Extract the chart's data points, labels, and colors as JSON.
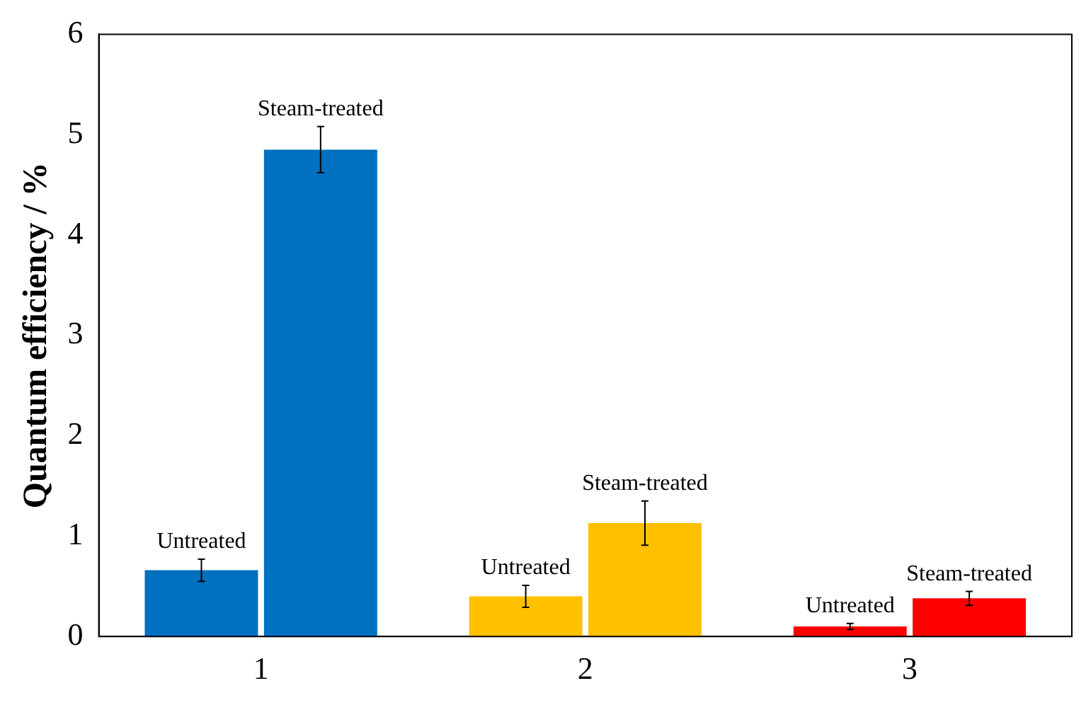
{
  "chart_data": {
    "type": "bar",
    "ylabel": "Quantum efficiency / %",
    "categories": [
      "1",
      "2",
      "3"
    ],
    "series": [
      {
        "name": "Untreated",
        "colors": [
          "#0070c0",
          "#ffc000",
          "#ff0000"
        ],
        "values": [
          0.66,
          0.4,
          0.1
        ],
        "errors": [
          0.11,
          0.11,
          0.03
        ]
      },
      {
        "name": "Steam-treated",
        "colors": [
          "#0070c0",
          "#ffc000",
          "#ff0000"
        ],
        "values": [
          4.85,
          1.13,
          0.38
        ],
        "errors": [
          0.23,
          0.22,
          0.07
        ]
      }
    ],
    "ylim": [
      0,
      6
    ],
    "yticks": [
      0,
      1,
      2,
      3,
      4,
      5,
      6
    ],
    "grid": false,
    "legend": false
  }
}
